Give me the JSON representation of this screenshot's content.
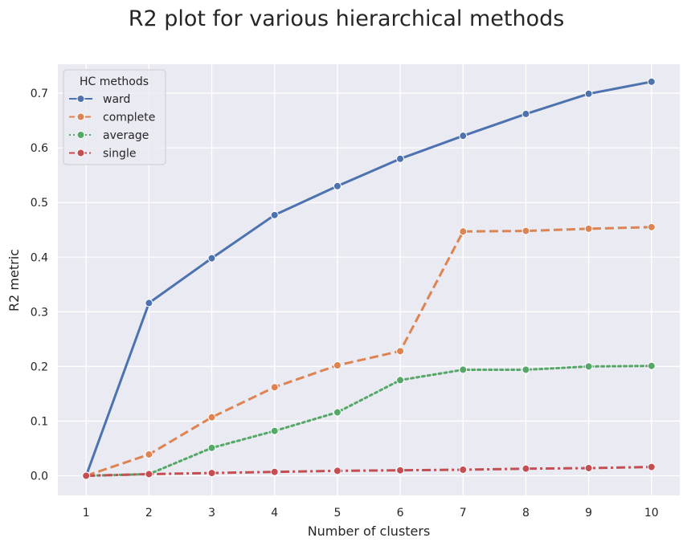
{
  "chart_data": {
    "type": "line",
    "title": "R2 plot for various hierarchical methods",
    "xlabel": "Number of clusters",
    "ylabel": "R2 metric",
    "x": [
      1,
      2,
      3,
      4,
      5,
      6,
      7,
      8,
      9,
      10
    ],
    "xlim": [
      0.55,
      10.45
    ],
    "ylim": [
      -0.036,
      0.753
    ],
    "yticks": [
      "0.0",
      "0.1",
      "0.2",
      "0.3",
      "0.4",
      "0.5",
      "0.6",
      "0.7"
    ],
    "xticks": [
      "1",
      "2",
      "3",
      "4",
      "5",
      "6",
      "7",
      "8",
      "9",
      "10"
    ],
    "grid": true,
    "legend": {
      "title": "HC methods",
      "placement": "top-left"
    },
    "series": [
      {
        "name": "ward",
        "color": "#4c72b0",
        "dash": "solid",
        "values": [
          0.0,
          0.316,
          0.398,
          0.477,
          0.53,
          0.58,
          0.622,
          0.662,
          0.699,
          0.721
        ]
      },
      {
        "name": "complete",
        "color": "#dd8452",
        "dash": "dashed",
        "values": [
          0.0,
          0.039,
          0.107,
          0.162,
          0.202,
          0.228,
          0.447,
          0.448,
          0.452,
          0.455
        ]
      },
      {
        "name": "average",
        "color": "#55a868",
        "dash": "dotted",
        "values": [
          0.0,
          0.003,
          0.051,
          0.082,
          0.116,
          0.175,
          0.194,
          0.194,
          0.2,
          0.201
        ]
      },
      {
        "name": "single",
        "color": "#c44e52",
        "dash": "dashdot",
        "values": [
          0.0,
          0.003,
          0.005,
          0.007,
          0.009,
          0.01,
          0.011,
          0.013,
          0.014,
          0.016
        ]
      }
    ]
  }
}
